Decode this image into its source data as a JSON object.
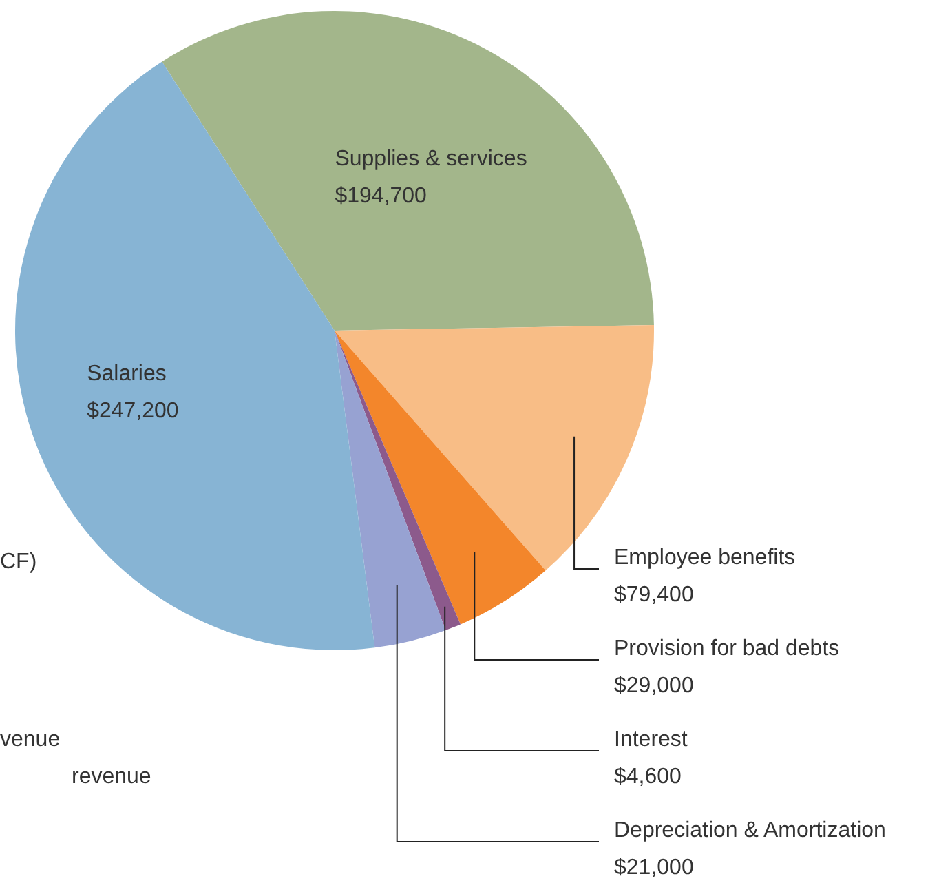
{
  "chart_data": {
    "type": "pie",
    "categories": [
      "Supplies & services",
      "Employee benefits",
      "Provision for bad debts",
      "Interest",
      "Depreciation & Amortization",
      "Salaries"
    ],
    "values": [
      194700,
      79400,
      29000,
      4600,
      21000,
      247200
    ],
    "value_labels": [
      "$194,700",
      "$79,400",
      "$29,000",
      "$4,600",
      "$21,000",
      "$247,200"
    ],
    "colors": [
      "#a3b68b",
      "#f8bd86",
      "#f3862b",
      "#8c5a8c",
      "#97a2d2",
      "#87b4d4"
    ],
    "legend": false,
    "annotations": [
      "CF)",
      "venue",
      "revenue"
    ]
  }
}
